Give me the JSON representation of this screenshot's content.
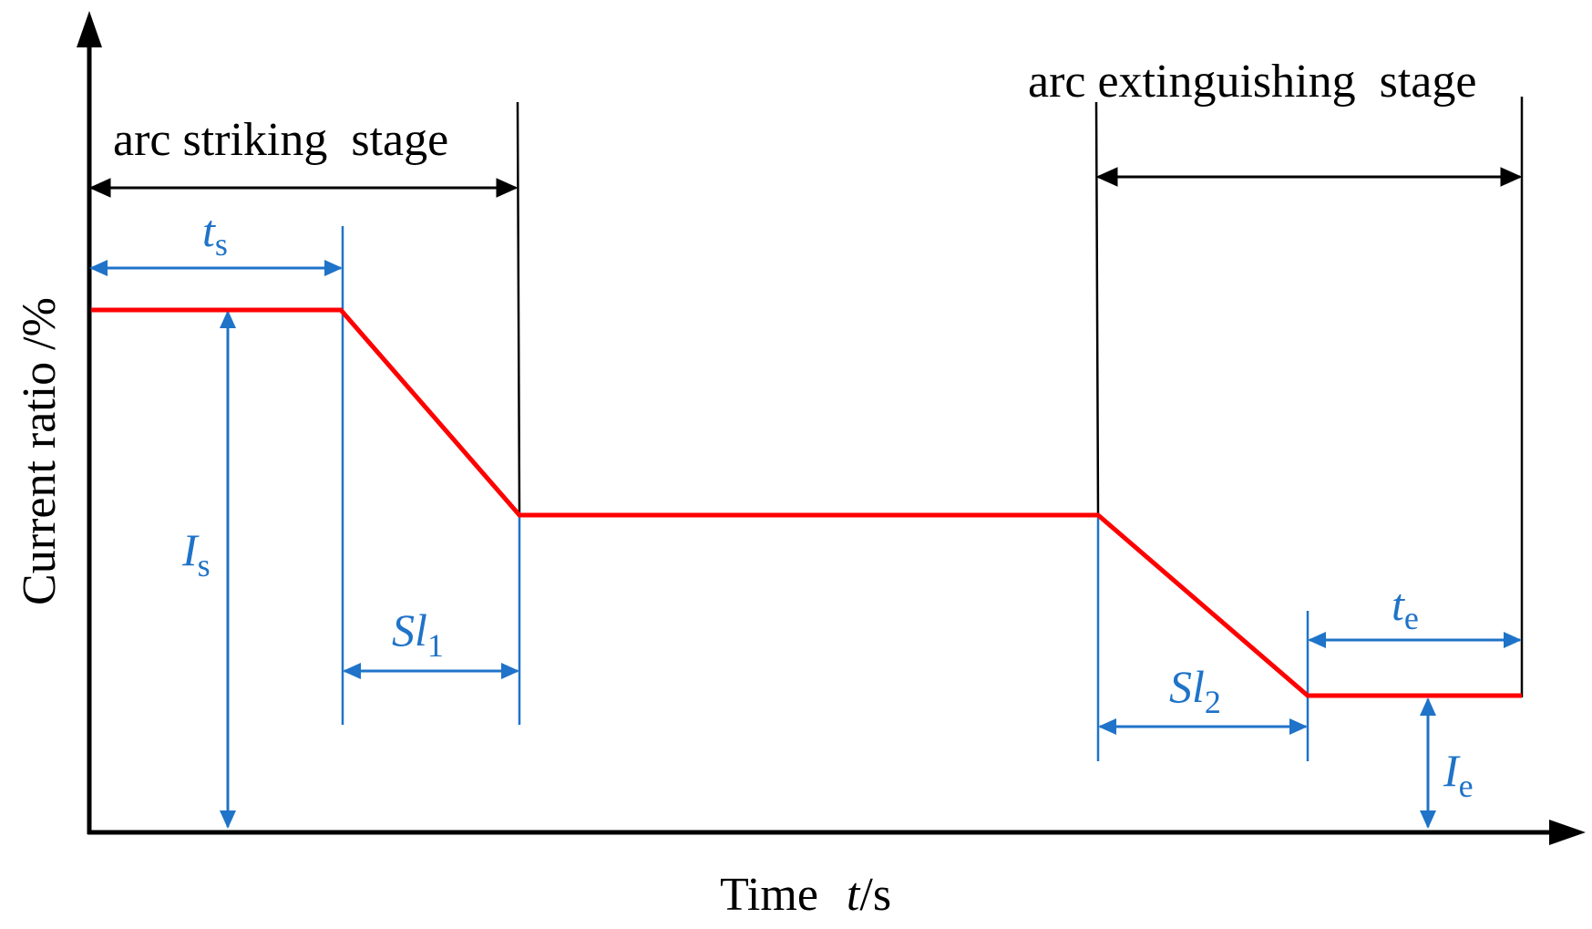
{
  "axes": {
    "x_label_prefix": "Time",
    "x_label_var": "t",
    "x_label_unit": "/s",
    "y_label": "Current ratio /%"
  },
  "stages": {
    "striking": "arc striking  stage",
    "extinguishing": "arc extinguishing  stage"
  },
  "annotations": {
    "ts": {
      "main": "t",
      "sub": "s"
    },
    "Is": {
      "main": "I",
      "sub": "s"
    },
    "Sl1": {
      "main": "Sl",
      "sub": "1"
    },
    "Sl2": {
      "main": "Sl",
      "sub": "2"
    },
    "te": {
      "main": "t",
      "sub": "e"
    },
    "Ie": {
      "main": "I",
      "sub": "e"
    }
  },
  "colors": {
    "curve": "#ff0000",
    "dimension": "#1f73c8",
    "axis": "#000000"
  }
}
